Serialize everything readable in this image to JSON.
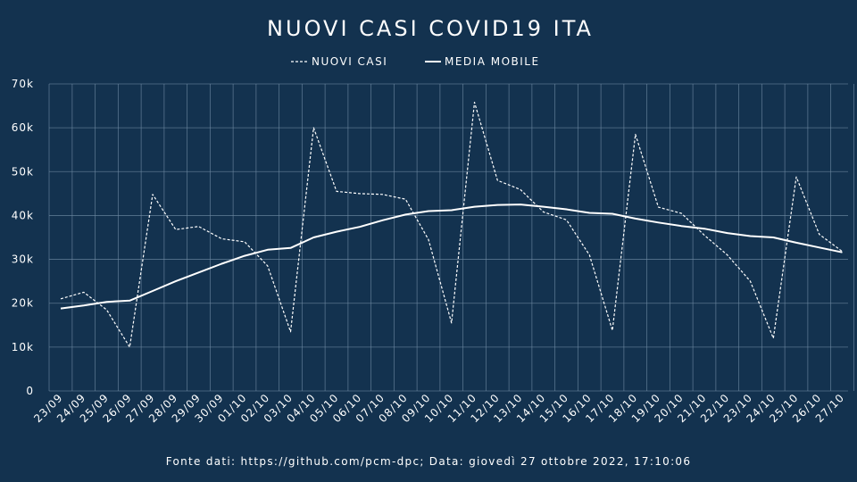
{
  "chart_data": {
    "type": "line",
    "title": "NUOVI CASI COVID19 ITA",
    "categories": [
      "23/09",
      "24/09",
      "25/09",
      "26/09",
      "27/09",
      "28/09",
      "29/09",
      "30/09",
      "01/10",
      "02/10",
      "03/10",
      "04/10",
      "05/10",
      "06/10",
      "07/10",
      "08/10",
      "09/10",
      "10/10",
      "11/10",
      "12/10",
      "13/10",
      "14/10",
      "15/10",
      "16/10",
      "17/10",
      "18/10",
      "19/10",
      "20/10",
      "21/10",
      "22/10",
      "23/10",
      "24/10",
      "25/10",
      "26/10",
      "27/10"
    ],
    "series": [
      {
        "name": "NUOVI CASI",
        "style": "dashed",
        "values": [
          21000,
          22500,
          18500,
          10000,
          44800,
          36800,
          37500,
          34700,
          34000,
          28500,
          13500,
          60000,
          45500,
          45000,
          44800,
          43700,
          34500,
          15500,
          65800,
          48000,
          45900,
          40800,
          39000,
          31000,
          13800,
          58500,
          41900,
          40500,
          35500,
          31000,
          25000,
          12000,
          48800,
          35700,
          31800
        ]
      },
      {
        "name": "MEDIA MOBILE",
        "style": "solid",
        "values": [
          18800,
          19500,
          20300,
          20600,
          22800,
          25000,
          27000,
          29000,
          30800,
          32200,
          32600,
          35000,
          36300,
          37400,
          38900,
          40200,
          41000,
          41200,
          42000,
          42400,
          42500,
          42000,
          41400,
          40600,
          40400,
          39300,
          38400,
          37600,
          37000,
          36000,
          35300,
          35000,
          33800,
          32700,
          31600
        ]
      }
    ],
    "yticks": [
      "0",
      "10k",
      "20k",
      "30k",
      "40k",
      "50k",
      "60k",
      "70k"
    ],
    "ylim": [
      0,
      70000
    ],
    "grid": true,
    "legend": "top-center",
    "colors": {
      "background": "#13324f",
      "line": "#ffffff",
      "grid": "#6f8aa3"
    }
  },
  "source_note": "Fonte dati: https://github.com/pcm-dpc; Data: giovedì 27 ottobre 2022, 17:10:06"
}
